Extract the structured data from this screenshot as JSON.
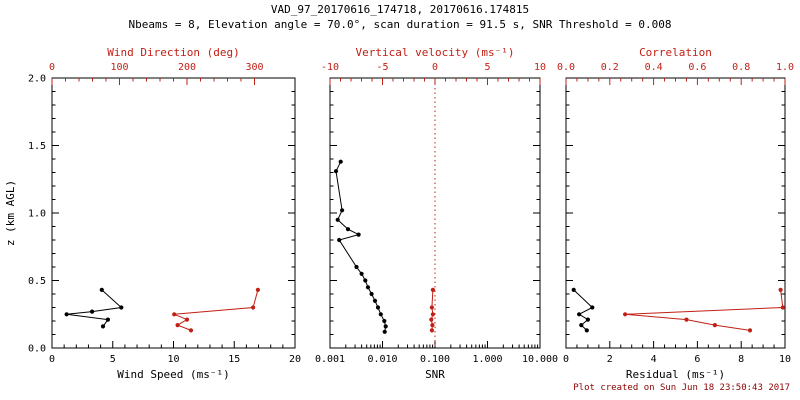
{
  "title": "VAD_97_20170616_174718, 20170616.174815",
  "subtitle": "Nbeams = 8, Elevation angle = 70.0°, scan duration = 91.5 s, SNR Threshold = 0.008",
  "footer": "Plot created on Sun Jun 18 23:50:43 2017",
  "colors": {
    "black": "#000000",
    "red": "#c22015",
    "footer_text": "#8b0000",
    "background": "#ffffff"
  },
  "chart_data": {
    "type": "line",
    "description": "VAD lidar wind retrieval profile, 3 panels sharing a height axis",
    "y_axis": {
      "label": "z (km AGL)",
      "range": [
        0,
        2.0
      ],
      "ticks": [
        0,
        0.5,
        1.0,
        1.5,
        2.0
      ],
      "tick_labels": [
        "0.0",
        "0.5",
        "1.0",
        "1.5",
        "2.0"
      ],
      "minor_divs": 5
    },
    "panels": [
      {
        "id": "wind",
        "bottom_axis": {
          "label": "Wind Speed (ms⁻¹)",
          "scale": "linear",
          "range": [
            0,
            20
          ],
          "ticks": [
            0,
            5,
            10,
            15,
            20
          ],
          "tick_labels": [
            "0",
            "5",
            "10",
            "15",
            "20"
          ],
          "minor_divs": 5,
          "color": "black"
        },
        "top_axis": {
          "label": "Wind Direction (deg)",
          "scale": "linear",
          "range": [
            0,
            360
          ],
          "ticks": [
            0,
            100,
            200,
            300
          ],
          "tick_labels": [
            "0",
            "100",
            "200",
            "300"
          ],
          "minor_divs": 5,
          "color": "red"
        },
        "ref_lines": [],
        "series": [
          {
            "name": "wind-speed",
            "axis": "bottom",
            "color": "black",
            "points": [
              [
                4.1,
                0.43
              ],
              [
                5.7,
                0.3
              ],
              [
                3.3,
                0.27
              ],
              [
                1.2,
                0.25
              ],
              [
                4.6,
                0.21
              ],
              [
                4.2,
                0.16
              ]
            ]
          },
          {
            "name": "wind-direction",
            "axis": "top",
            "color": "red",
            "points": [
              [
                305,
                0.43
              ],
              [
                298,
                0.3
              ],
              [
                181,
                0.25
              ],
              [
                200,
                0.21
              ],
              [
                186,
                0.17
              ],
              [
                206,
                0.13
              ]
            ]
          }
        ]
      },
      {
        "id": "snr",
        "bottom_axis": {
          "label": "SNR",
          "scale": "log",
          "range": [
            0.001,
            10
          ],
          "ticks": [
            0.001,
            0.01,
            0.1,
            1,
            10
          ],
          "tick_labels": [
            "0.001",
            "0.010",
            "0.100",
            "1.000",
            "10.000"
          ],
          "minor_divs": 0,
          "color": "black"
        },
        "top_axis": {
          "label": "Vertical velocity (ms⁻¹)",
          "scale": "linear",
          "range": [
            -10,
            10
          ],
          "ticks": [
            -10,
            -5,
            0,
            5,
            10
          ],
          "tick_labels": [
            "-10",
            "-5",
            "0",
            "5",
            "10"
          ],
          "minor_divs": 5,
          "color": "red"
        },
        "ref_lines": [
          {
            "axis": "top",
            "value": 0,
            "color": "red",
            "style": "dotted"
          }
        ],
        "series": [
          {
            "name": "snr",
            "axis": "bottom",
            "color": "black",
            "points": [
              [
                0.0016,
                1.38
              ],
              [
                0.0013,
                1.31
              ],
              [
                0.0017,
                1.02
              ],
              [
                0.0014,
                0.95
              ],
              [
                0.0022,
                0.88
              ],
              [
                0.0035,
                0.84
              ],
              [
                0.0015,
                0.8
              ],
              [
                0.0032,
                0.6
              ],
              [
                0.004,
                0.55
              ],
              [
                0.0047,
                0.5
              ],
              [
                0.0053,
                0.45
              ],
              [
                0.0062,
                0.4
              ],
              [
                0.0072,
                0.35
              ],
              [
                0.0082,
                0.3
              ],
              [
                0.0093,
                0.25
              ],
              [
                0.0108,
                0.2
              ],
              [
                0.0115,
                0.16
              ],
              [
                0.011,
                0.12
              ]
            ]
          },
          {
            "name": "vertical-velocity",
            "axis": "top",
            "color": "red",
            "points": [
              [
                -0.2,
                0.43
              ],
              [
                -0.3,
                0.3
              ],
              [
                -0.2,
                0.25
              ],
              [
                -0.35,
                0.21
              ],
              [
                -0.25,
                0.17
              ],
              [
                -0.3,
                0.13
              ]
            ]
          }
        ]
      },
      {
        "id": "residual",
        "bottom_axis": {
          "label": "Residual (ms⁻¹)",
          "scale": "linear",
          "range": [
            0,
            10
          ],
          "ticks": [
            0,
            2,
            4,
            6,
            8,
            10
          ],
          "tick_labels": [
            "0",
            "2",
            "4",
            "6",
            "8",
            "10"
          ],
          "minor_divs": 4,
          "color": "black"
        },
        "top_axis": {
          "label": "Correlation",
          "scale": "linear",
          "range": [
            0,
            1
          ],
          "ticks": [
            0,
            0.2,
            0.4,
            0.6,
            0.8,
            1.0
          ],
          "tick_labels": [
            "0.0",
            "0.2",
            "0.4",
            "0.6",
            "0.8",
            "1.0"
          ],
          "minor_divs": 4,
          "color": "red"
        },
        "ref_lines": [],
        "series": [
          {
            "name": "residual",
            "axis": "bottom",
            "color": "black",
            "points": [
              [
                0.35,
                0.43
              ],
              [
                1.2,
                0.3
              ],
              [
                0.6,
                0.25
              ],
              [
                1.0,
                0.21
              ],
              [
                0.7,
                0.17
              ],
              [
                0.95,
                0.13
              ]
            ]
          },
          {
            "name": "correlation",
            "axis": "top",
            "color": "red",
            "points": [
              [
                0.98,
                0.43
              ],
              [
                0.99,
                0.3
              ],
              [
                0.27,
                0.25
              ],
              [
                0.55,
                0.21
              ],
              [
                0.68,
                0.17
              ],
              [
                0.84,
                0.13
              ]
            ]
          }
        ]
      }
    ]
  }
}
